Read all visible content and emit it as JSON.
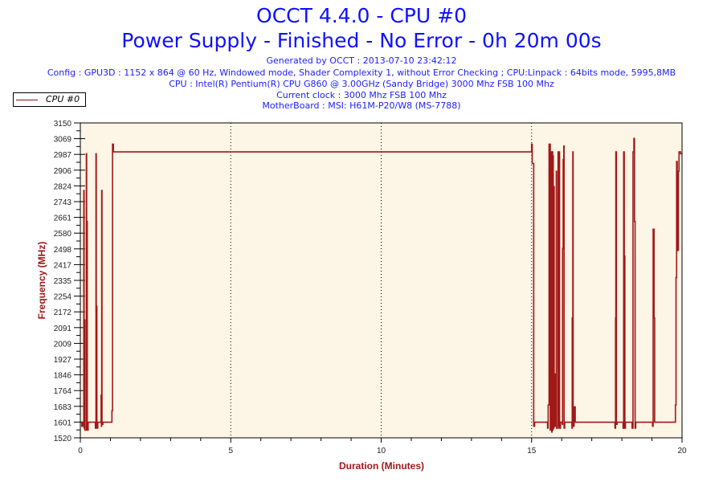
{
  "title": "OCCT 4.4.0 - CPU #0",
  "subtitle": "Power Supply - Finished - No Error - 0h 20m 00s",
  "info_lines": [
    "Generated by OCCT : 2013-07-10 23:42:12",
    "Config : GPU3D : 1152 x 864 @ 60 Hz, Windowed mode, Shader Complexity 1, without Error Checking ; CPU:Linpack : 64bits mode, 5995,8MB",
    "CPU : Intel(R) Pentium(R) CPU G860 @ 3.00GHz (Sandy Bridge) 3000 Mhz FSB 100 Mhz",
    "Current clock : 3000 Mhz FSB 100 Mhz",
    "MotherBoard : MSI: H61M-P20/W8 (MS-7788)"
  ],
  "colors": {
    "series": "#a01818",
    "plot_bg": "#fdf5e6",
    "title": "#1010ff"
  },
  "chart_data": {
    "type": "line",
    "xlabel": "Duration (Minutes)",
    "ylabel": "Frequency (MHz)",
    "xlim": [
      0,
      20
    ],
    "ylim": [
      1520,
      3150
    ],
    "xticks": [
      "0",
      "5",
      "10",
      "15",
      "20"
    ],
    "yticks": [
      "1520",
      "1601",
      "1683",
      "1764",
      "1846",
      "1927",
      "2009",
      "2091",
      "2172",
      "2254",
      "2335",
      "2417",
      "2498",
      "2580",
      "2661",
      "2743",
      "2824",
      "2906",
      "2987",
      "3069",
      "3150"
    ],
    "legend": {
      "entries": [
        "CPU #0"
      ],
      "placement": "top-left"
    },
    "grid": "vertical dotted at 5, 10, 15",
    "series": [
      {
        "name": "CPU #0",
        "step": true,
        "points": [
          [
            0,
            1601
          ],
          [
            0.05,
            1580
          ],
          [
            0.08,
            1601
          ],
          [
            0.115,
            2800
          ],
          [
            0.125,
            1570
          ],
          [
            0.14,
            2130
          ],
          [
            0.15,
            1560
          ],
          [
            0.2,
            2990
          ],
          [
            0.21,
            1601
          ],
          [
            0.22,
            2640
          ],
          [
            0.23,
            1560
          ],
          [
            0.26,
            1601
          ],
          [
            0.5,
            1570
          ],
          [
            0.52,
            2990
          ],
          [
            0.53,
            1580
          ],
          [
            0.54,
            2200
          ],
          [
            0.55,
            1570
          ],
          [
            0.58,
            1601
          ],
          [
            0.69,
            1740
          ],
          [
            0.7,
            1580
          ],
          [
            0.71,
            2800
          ],
          [
            0.72,
            1590
          ],
          [
            0.75,
            1601
          ],
          [
            1.05,
            1660
          ],
          [
            1.07,
            3040
          ],
          [
            1.1,
            3000
          ],
          [
            15.0,
            3040
          ],
          [
            15.02,
            2940
          ],
          [
            15.07,
            1580
          ],
          [
            15.1,
            1601
          ],
          [
            15.53,
            1570
          ],
          [
            15.55,
            1690
          ],
          [
            15.58,
            3040
          ],
          [
            15.6,
            2700
          ],
          [
            15.61,
            3040
          ],
          [
            15.62,
            1560
          ],
          [
            15.64,
            3000
          ],
          [
            15.65,
            1570
          ],
          [
            15.66,
            2960
          ],
          [
            15.67,
            1550
          ],
          [
            15.68,
            3000
          ],
          [
            15.7,
            1560
          ],
          [
            15.71,
            2980
          ],
          [
            15.72,
            1570
          ],
          [
            15.74,
            2820
          ],
          [
            15.75,
            1580
          ],
          [
            15.76,
            1850
          ],
          [
            15.78,
            1580
          ],
          [
            15.8,
            1601
          ],
          [
            15.82,
            2900
          ],
          [
            15.83,
            1570
          ],
          [
            15.88,
            3000
          ],
          [
            15.9,
            1580
          ],
          [
            15.92,
            3000
          ],
          [
            15.93,
            1570
          ],
          [
            15.96,
            1601
          ],
          [
            16.02,
            1590
          ],
          [
            16.03,
            2500
          ],
          [
            16.05,
            2960
          ],
          [
            16.07,
            3030
          ],
          [
            16.08,
            1570
          ],
          [
            16.1,
            1601
          ],
          [
            16.34,
            1570
          ],
          [
            16.35,
            2140
          ],
          [
            16.37,
            3000
          ],
          [
            16.38,
            1580
          ],
          [
            16.41,
            1680
          ],
          [
            16.45,
            1601
          ],
          [
            17.77,
            1570
          ],
          [
            17.79,
            2140
          ],
          [
            17.8,
            3000
          ],
          [
            17.82,
            1590
          ],
          [
            17.84,
            1601
          ],
          [
            18.04,
            1570
          ],
          [
            18.06,
            3000
          ],
          [
            18.08,
            2460
          ],
          [
            18.1,
            1570
          ],
          [
            18.12,
            1601
          ],
          [
            18.34,
            1570
          ],
          [
            18.37,
            3000
          ],
          [
            18.4,
            3070
          ],
          [
            18.42,
            2640
          ],
          [
            18.44,
            1570
          ],
          [
            18.46,
            1601
          ],
          [
            19.02,
            1580
          ],
          [
            19.04,
            2600
          ],
          [
            19.07,
            2140
          ],
          [
            19.09,
            1601
          ],
          [
            19.77,
            1601
          ],
          [
            19.78,
            1690
          ],
          [
            19.8,
            2350
          ],
          [
            19.82,
            2950
          ],
          [
            19.84,
            2680
          ],
          [
            19.86,
            2490
          ],
          [
            19.88,
            2900
          ],
          [
            19.9,
            3000
          ],
          [
            19.95,
            2990
          ],
          [
            20,
            2990
          ]
        ]
      }
    ]
  }
}
